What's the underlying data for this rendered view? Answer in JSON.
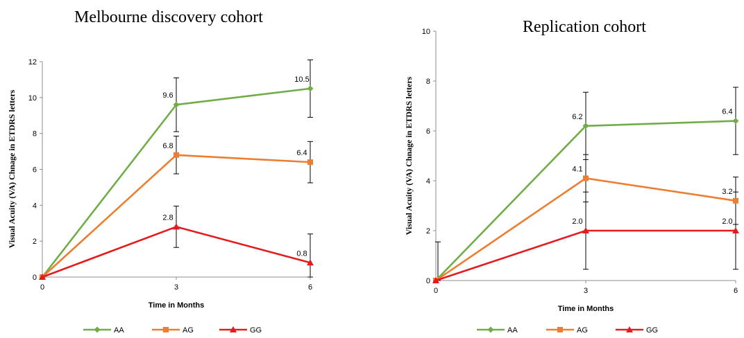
{
  "chart_data": [
    {
      "type": "line",
      "title": "Melbourne discovery cohort",
      "xlabel": "Time in Months",
      "ylabel": "Visual Acuity (VA) Chnage in ETDRS letters",
      "x": [
        0,
        3,
        6
      ],
      "xticks": [
        "0",
        "3",
        "6"
      ],
      "ylim": [
        0,
        12
      ],
      "yticks": [
        "0",
        "2",
        "4",
        "6",
        "8",
        "10",
        "12"
      ],
      "legend_position": "bottom",
      "series": [
        {
          "name": "AA",
          "color": "#70ad47",
          "marker": "diamond",
          "values": [
            0,
            9.6,
            10.5
          ],
          "labels": [
            "",
            "9.6",
            "10.5"
          ],
          "err": [
            0,
            1.5,
            1.6
          ]
        },
        {
          "name": "AG",
          "color": "#ed7d31",
          "marker": "square",
          "values": [
            0,
            6.8,
            6.4
          ],
          "labels": [
            "",
            "6.8",
            "6.4"
          ],
          "err": [
            0,
            1.05,
            1.15
          ]
        },
        {
          "name": "GG",
          "color": "#e41a1c",
          "marker": "triangle",
          "values": [
            0,
            2.8,
            0.8
          ],
          "labels": [
            "",
            "2.8",
            "0.8"
          ],
          "err": [
            0,
            1.15,
            1.6
          ]
        }
      ]
    },
    {
      "type": "line",
      "title": "Replication cohort",
      "xlabel": "Time in Months",
      "ylabel": "Visual Acuity (VA) Chnage in ETDRS letters",
      "x": [
        0,
        3,
        6
      ],
      "xticks": [
        "0",
        "3",
        "6"
      ],
      "ylim": [
        0,
        10
      ],
      "yticks": [
        "0",
        "2",
        "4",
        "6",
        "8",
        "10"
      ],
      "legend_position": "bottom",
      "series": [
        {
          "name": "AA",
          "color": "#70ad47",
          "marker": "diamond",
          "values": [
            0,
            6.2,
            6.4
          ],
          "labels": [
            "",
            "6.2",
            "6.4"
          ],
          "err": [
            0,
            1.35,
            1.35
          ]
        },
        {
          "name": "AG",
          "color": "#ed7d31",
          "marker": "square",
          "values": [
            0,
            4.1,
            3.2
          ],
          "labels": [
            "",
            "4.1",
            "3.2"
          ],
          "err": [
            0,
            0.95,
            0.95
          ]
        },
        {
          "name": "GG",
          "color": "#e41a1c",
          "marker": "triangle",
          "values": [
            0,
            2.0,
            2.0
          ],
          "labels": [
            "",
            "2.0",
            "2.0"
          ],
          "err": [
            1.55,
            1.55,
            1.55
          ]
        }
      ]
    }
  ]
}
